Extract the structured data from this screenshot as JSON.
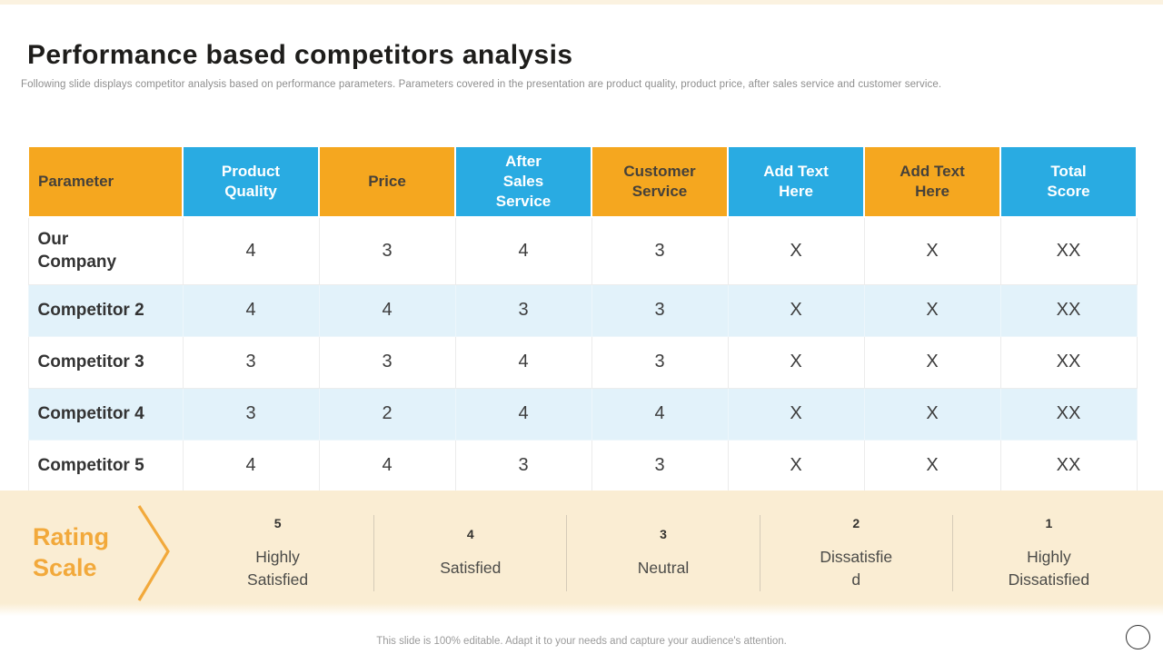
{
  "slide": {
    "title": "Performance based competitors analysis",
    "subtitle": "Following slide displays competitor analysis based on performance parameters. Parameters covered in the presentation are product quality, product price, after sales service and customer service.",
    "footer_note": "This slide is 100% editable. Adapt it to your needs and capture your audience's attention."
  },
  "colors": {
    "header_orange": "#F5A71F",
    "header_blue": "#29ABE2",
    "row_alt_blue": "#E2F2FA",
    "rating_band_cream": "#FAEDD3",
    "rating_accent_orange": "#F2A93B"
  },
  "table": {
    "columns": [
      {
        "label": "Parameter",
        "style": "orange"
      },
      {
        "label": "Product Quality",
        "style": "blue"
      },
      {
        "label": "Price",
        "style": "orange"
      },
      {
        "label": "After Sales Service",
        "style": "blue"
      },
      {
        "label": "Customer Service",
        "style": "orange"
      },
      {
        "label": "Add Text Here",
        "style": "blue"
      },
      {
        "label": "Add Text Here",
        "style": "orange"
      },
      {
        "label": "Total Score",
        "style": "blue"
      }
    ],
    "rows": [
      {
        "name": "Our Company",
        "values": [
          "4",
          "3",
          "4",
          "3",
          "X",
          "X",
          "XX"
        ]
      },
      {
        "name": "Competitor 2",
        "values": [
          "4",
          "4",
          "3",
          "3",
          "X",
          "X",
          "XX"
        ]
      },
      {
        "name": "Competitor 3",
        "values": [
          "3",
          "3",
          "4",
          "3",
          "X",
          "X",
          "XX"
        ]
      },
      {
        "name": "Competitor 4",
        "values": [
          "3",
          "2",
          "4",
          "4",
          "X",
          "X",
          "XX"
        ]
      },
      {
        "name": "Competitor 5",
        "values": [
          "4",
          "4",
          "3",
          "3",
          "X",
          "X",
          "XX"
        ]
      }
    ]
  },
  "rating_scale": {
    "label": "Rating Scale",
    "items": [
      {
        "score": "5",
        "label": "Highly Satisfied"
      },
      {
        "score": "4",
        "label": "Satisfied"
      },
      {
        "score": "3",
        "label": "Neutral"
      },
      {
        "score": "2",
        "label": "Dissatisfied"
      },
      {
        "score": "1",
        "label": "Highly Dissatisfied"
      }
    ]
  }
}
